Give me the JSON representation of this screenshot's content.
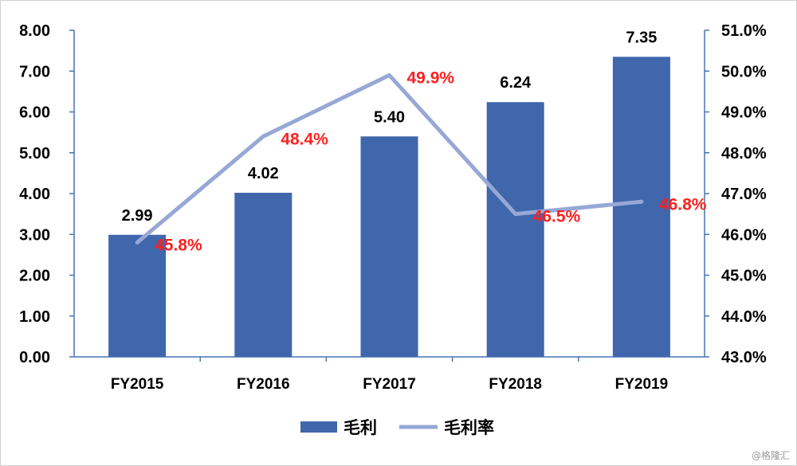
{
  "chart_data": {
    "type": "bar",
    "categories": [
      "FY2015",
      "FY2016",
      "FY2017",
      "FY2018",
      "FY2019"
    ],
    "series": [
      {
        "name": "毛利",
        "type": "bar",
        "axis": "left",
        "color": "#4066ac",
        "values": [
          2.99,
          4.02,
          5.4,
          6.24,
          7.35
        ],
        "labels": [
          "2.99",
          "4.02",
          "5.40",
          "6.24",
          "7.35"
        ]
      },
      {
        "name": "毛利率",
        "type": "line",
        "axis": "right",
        "color": "#97a8d6",
        "label_color": "#ff1f1f",
        "values": [
          45.8,
          48.4,
          49.9,
          46.5,
          46.8
        ],
        "labels": [
          "45.8%",
          "48.4%",
          "49.9%",
          "46.5%",
          "46.8%"
        ]
      }
    ],
    "y_left": {
      "ylim": [
        0,
        8
      ],
      "ticks": [
        "0.00",
        "1.00",
        "2.00",
        "3.00",
        "4.00",
        "5.00",
        "6.00",
        "7.00",
        "8.00"
      ]
    },
    "y_right": {
      "ylim": [
        43,
        51
      ],
      "ticks": [
        "43.0%",
        "44.0%",
        "45.0%",
        "46.0%",
        "47.0%",
        "48.0%",
        "49.0%",
        "50.0%",
        "51.0%"
      ]
    },
    "grid": false,
    "legend": "bottom-center",
    "title": "",
    "xlabel": "",
    "ylabel": ""
  },
  "watermark": "@格隆汇"
}
